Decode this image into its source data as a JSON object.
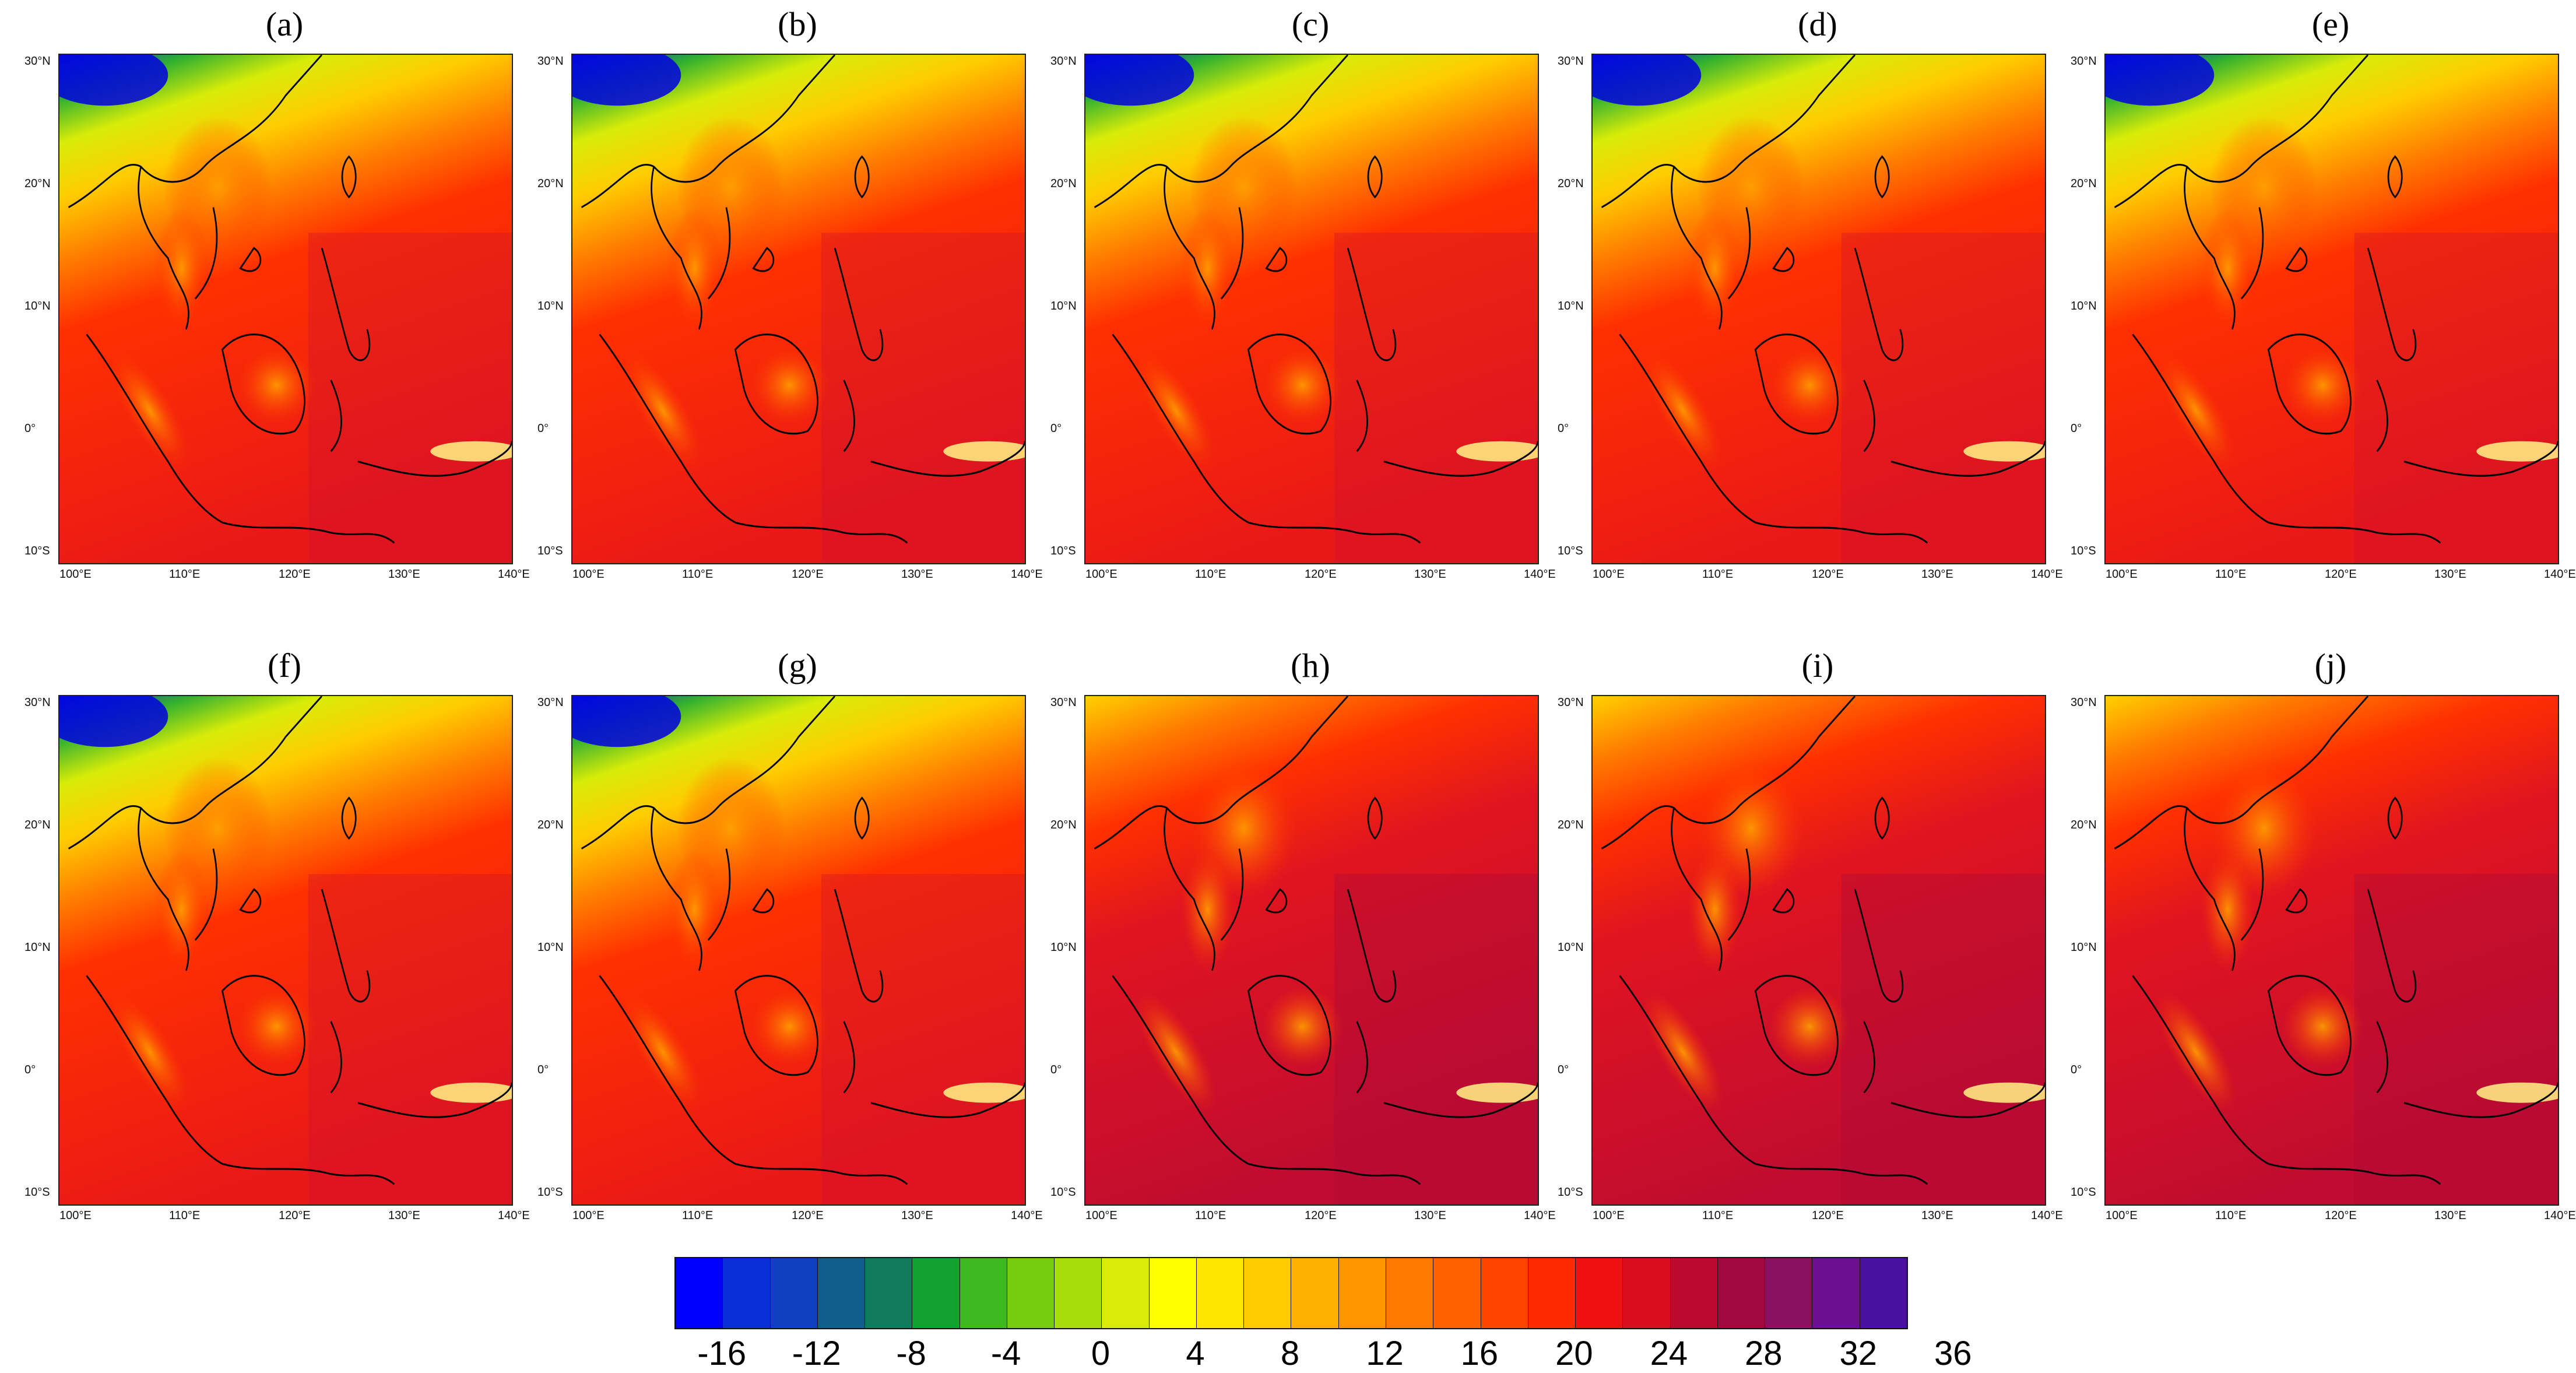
{
  "panels": [
    {
      "label": "(a)",
      "style": "cool"
    },
    {
      "label": "(b)",
      "style": "cool"
    },
    {
      "label": "(c)",
      "style": "cool"
    },
    {
      "label": "(d)",
      "style": "cool"
    },
    {
      "label": "(e)",
      "style": "cool"
    },
    {
      "label": "(f)",
      "style": "cool"
    },
    {
      "label": "(g)",
      "style": "cool"
    },
    {
      "label": "(h)",
      "style": "warm"
    },
    {
      "label": "(i)",
      "style": "warm"
    },
    {
      "label": "(j)",
      "style": "warm"
    }
  ],
  "lat_ticks": [
    "30°N",
    "20°N",
    "10°N",
    "0°",
    "10°S"
  ],
  "lon_ticks": [
    "100°E",
    "110°E",
    "120°E",
    "130°E",
    "140°E"
  ],
  "colorbar": {
    "labels": [
      "-16",
      "-12",
      "-8",
      "-4",
      "0",
      "4",
      "8",
      "12",
      "16",
      "20",
      "24",
      "28",
      "32",
      "36"
    ],
    "colors": [
      "#0000ff",
      "#0a2ed8",
      "#1040c0",
      "#105f8a",
      "#0f7a5c",
      "#12a030",
      "#40b820",
      "#78cc10",
      "#a8dc0a",
      "#d8ec08",
      "#ffff00",
      "#ffe600",
      "#ffcc00",
      "#ffb000",
      "#ff9600",
      "#ff7a00",
      "#ff6000",
      "#ff4400",
      "#ff2a00",
      "#f01010",
      "#d80e1e",
      "#bc0a2e",
      "#a0083e",
      "#8a1060",
      "#6a1090",
      "#4a10a0"
    ]
  }
}
